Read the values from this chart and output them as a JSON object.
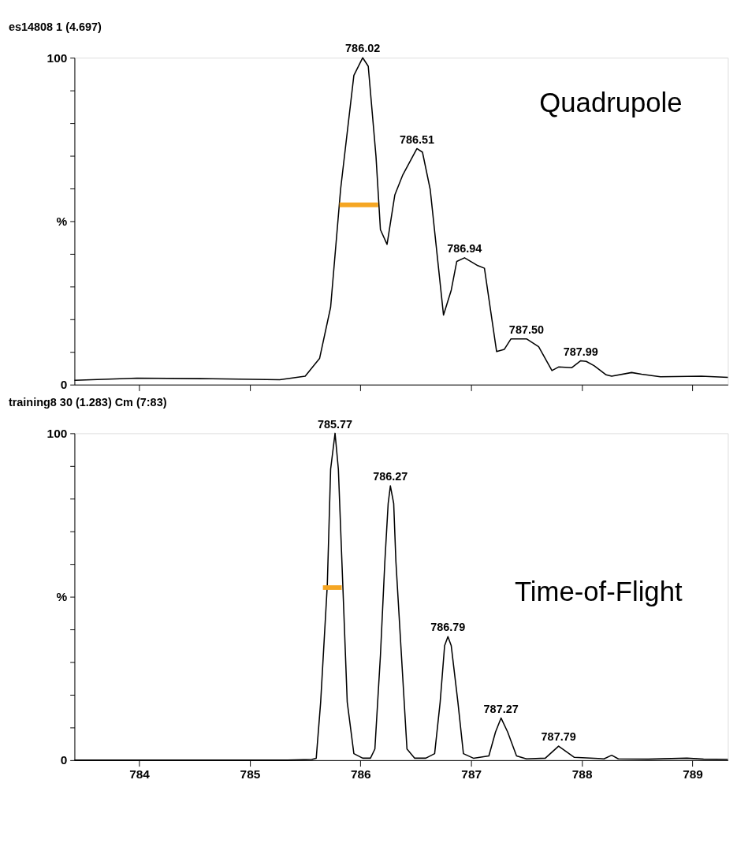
{
  "chart_data": [
    {
      "type": "line",
      "title": "es14808 1 (4.697)",
      "xlim": [
        783.415,
        789.32
      ],
      "xticks": [
        {
          "value": 784,
          "label": null
        },
        {
          "value": 785,
          "label": null
        },
        {
          "value": 786,
          "label": null
        },
        {
          "value": 787,
          "label": null
        },
        {
          "value": 788,
          "label": null
        },
        {
          "value": 789,
          "label": null
        }
      ],
      "ylim": [
        0,
        100
      ],
      "yticks": [
        0,
        {
          "value": 10,
          "label": null
        },
        {
          "value": 20,
          "label": null
        },
        {
          "value": 30,
          "label": null
        },
        {
          "value": 40,
          "label": null
        },
        {
          "value": 50,
          "label": "%"
        },
        {
          "value": 60,
          "label": null
        },
        {
          "value": 70,
          "label": null
        },
        {
          "value": 80,
          "label": null
        },
        {
          "value": 90,
          "label": null
        },
        100
      ],
      "tick_labels": "y",
      "grid": false,
      "marker": "none",
      "line_style": "solid",
      "series": [
        {
          "color": "#000000",
          "x": [
            783.415,
            783.98,
            784.66,
            785.27,
            785.5,
            785.63,
            785.73,
            785.82,
            785.94,
            786.02,
            786.07,
            786.14,
            786.18,
            786.24,
            786.31,
            786.38,
            786.51,
            786.56,
            786.63,
            786.75,
            786.82,
            786.87,
            786.94,
            787.06,
            787.12,
            787.23,
            787.3,
            787.36,
            787.5,
            787.61,
            787.73,
            787.79,
            787.91,
            787.99,
            788.04,
            788.11,
            788.22,
            788.27,
            788.45,
            788.54,
            788.71,
            789.08,
            789.32
          ],
          "values": [
            1.3,
            2,
            1.8,
            1.5,
            2.6,
            8,
            23.7,
            59.7,
            94.6,
            100,
            97.4,
            69.8,
            47.4,
            42.9,
            58,
            64,
            72.2,
            71.1,
            59.7,
            21.3,
            28.9,
            37.7,
            38.8,
            36.4,
            35.6,
            10.1,
            10.8,
            14,
            14,
            11.6,
            4.3,
            5.4,
            5.2,
            7.3,
            7.1,
            5.8,
            3,
            2.6,
            3.7,
            3.2,
            2.4,
            2.6,
            2.2
          ]
        },
        {
          "color": "#f5a623",
          "type": "line",
          "x": [
            785.81,
            786.16
          ],
          "values": [
            55,
            55
          ]
        }
      ],
      "annotations": [
        "Quadrupole",
        {
          "text": "786.02",
          "x": 786.02,
          "y": 100
        },
        {
          "text": "786.51",
          "x": 786.51,
          "y": 72.2
        },
        {
          "text": "786.94",
          "x": 786.94,
          "y": 38.8
        },
        {
          "text": "787.50",
          "x": 787.5,
          "y": 14
        },
        {
          "text": "787.99",
          "x": 787.99,
          "y": 7.3
        }
      ]
    },
    {
      "type": "line",
      "title": "training8 30 (1.283) Cm (7:83)",
      "xlim": [
        783.415,
        789.32
      ],
      "xticks": [
        784,
        785,
        786,
        787,
        788,
        789
      ],
      "ylim": [
        0,
        100
      ],
      "yticks": [
        0,
        {
          "value": 10,
          "label": null
        },
        {
          "value": 20,
          "label": null
        },
        {
          "value": 30,
          "label": null
        },
        {
          "value": 40,
          "label": null
        },
        {
          "value": 50,
          "label": "%"
        },
        {
          "value": 60,
          "label": null
        },
        {
          "value": 70,
          "label": null
        },
        {
          "value": 80,
          "label": null
        },
        {
          "value": 90,
          "label": null
        },
        100
      ],
      "grid": false,
      "marker": "none",
      "line_style": "solid",
      "series": [
        {
          "color": "#000000",
          "x": [
            783.415,
            785.34,
            785.56,
            785.6,
            785.64,
            785.7,
            785.73,
            785.77,
            785.8,
            785.84,
            785.88,
            785.94,
            786.02,
            786.09,
            786.13,
            786.18,
            786.22,
            786.25,
            786.27,
            786.3,
            786.32,
            786.37,
            786.42,
            786.49,
            786.59,
            786.67,
            786.72,
            786.76,
            786.79,
            786.82,
            786.88,
            786.93,
            787.02,
            787.16,
            787.22,
            787.27,
            787.33,
            787.41,
            787.5,
            787.67,
            787.79,
            787.93,
            788.2,
            788.27,
            788.33,
            788.6,
            788.95,
            789.1,
            789.32
          ],
          "values": [
            0,
            0,
            0.2,
            0.6,
            17.8,
            53.6,
            89,
            100,
            89,
            53.6,
            17.8,
            2,
            0.6,
            0.6,
            3.4,
            32,
            60.7,
            78.5,
            83.9,
            78.5,
            60.7,
            32,
            3.4,
            0.6,
            0.6,
            2,
            17.8,
            35,
            37.8,
            35,
            17.8,
            2,
            0.6,
            1.3,
            8.6,
            12.9,
            8.6,
            1.3,
            0.4,
            0.6,
            4.3,
            0.9,
            0.4,
            1.5,
            0.4,
            0.3,
            0.6,
            0.3,
            0.2
          ]
        },
        {
          "color": "#f5a623",
          "type": "line",
          "x": [
            785.66,
            785.83
          ],
          "values": [
            52.8,
            52.8
          ]
        }
      ],
      "annotations": [
        "Time-of-Flight",
        {
          "text": "785.77",
          "x": 785.77,
          "y": 100
        },
        {
          "text": "786.27",
          "x": 786.27,
          "y": 83.9
        },
        {
          "text": "786.79",
          "x": 786.79,
          "y": 37.8
        },
        {
          "text": "787.27",
          "x": 787.27,
          "y": 12.9
        },
        {
          "text": "787.79",
          "x": 787.79,
          "y": 4.3
        }
      ]
    }
  ]
}
